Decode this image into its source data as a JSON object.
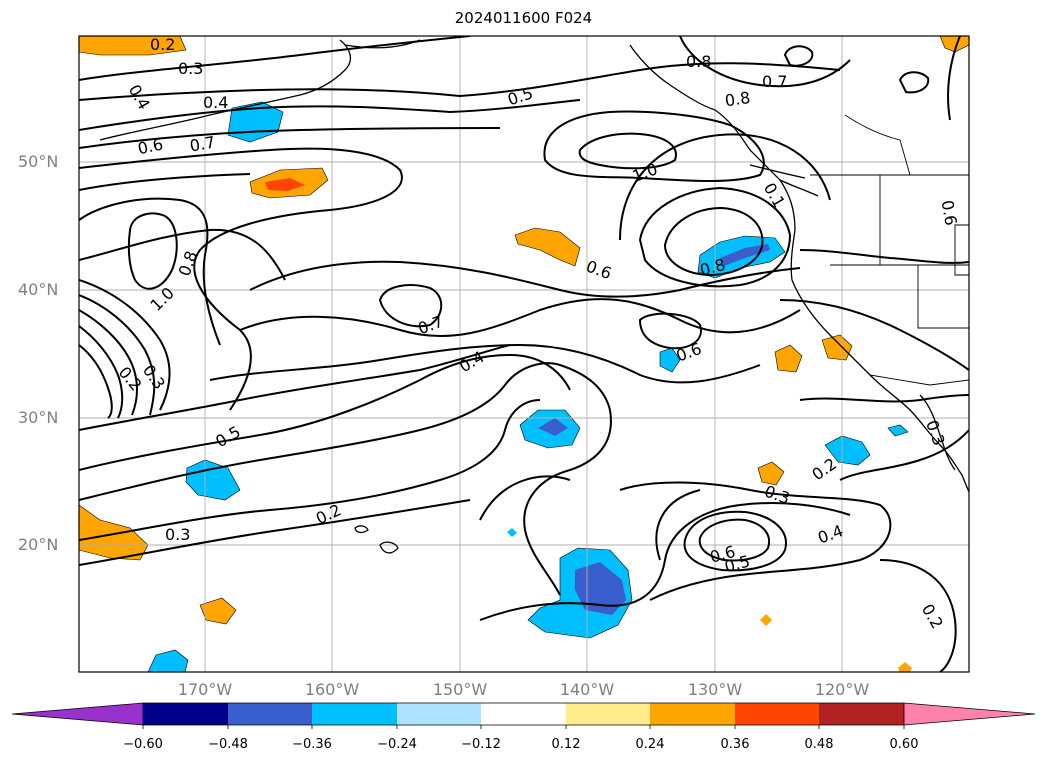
{
  "title": "2024011600 F024",
  "latitude_labels": [
    "50°N",
    "40°N",
    "30°N",
    "20°N"
  ],
  "longitude_labels": [
    "170°W",
    "160°W",
    "150°W",
    "140°W",
    "130°W",
    "120°W"
  ],
  "contour_labels": [
    "0.2",
    "0.3",
    "0.4",
    "0.4",
    "0.6",
    "0.7",
    "0.5",
    "0.8",
    "0.7",
    "0.8",
    "1.0",
    "0.1",
    "0.6",
    "0.8",
    "0.6",
    "0.8",
    "1.0",
    "0.7",
    "0.4",
    "0.6",
    "0.2",
    "0.3",
    "0.5",
    "0.3",
    "0.2",
    "0.3",
    "0.4",
    "0.6",
    "0.5",
    "0.3",
    "0.2",
    "0.2"
  ],
  "colorbar": {
    "ticks": [
      "−0.60",
      "−0.48",
      "−0.36",
      "−0.24",
      "−0.12",
      "0.12",
      "0.24",
      "0.36",
      "0.48",
      "0.60"
    ],
    "colors": [
      "#9932cc",
      "#00008b",
      "#3a5fcd",
      "#00bfff",
      "#b0e2ff",
      "#ffffff",
      "#ffec8b",
      "#ffa500",
      "#ff4500",
      "#b22222",
      "#ff82ab"
    ]
  },
  "colors": {
    "axis_label": "#7f7f7f",
    "contour": "#000000",
    "grid": "#b0b0b0"
  }
}
